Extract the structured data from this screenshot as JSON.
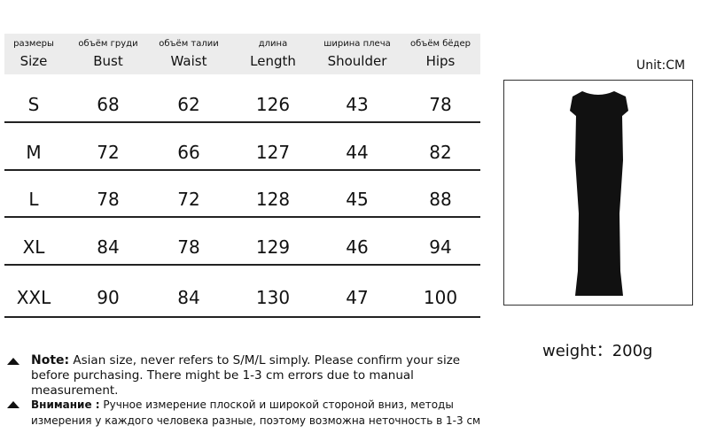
{
  "headers": [
    {
      "ru": "размеры",
      "en": "Size"
    },
    {
      "ru": "объём груди",
      "en": "Bust"
    },
    {
      "ru": "объём талии",
      "en": "Waist"
    },
    {
      "ru": "длина",
      "en": "Length"
    },
    {
      "ru": "ширина плеча",
      "en": "Shoulder"
    },
    {
      "ru": "объём бёдер",
      "en": "Hips"
    }
  ],
  "rows": [
    [
      "S",
      "68",
      "62",
      "126",
      "43",
      "78"
    ],
    [
      "M",
      "72",
      "66",
      "127",
      "44",
      "82"
    ],
    [
      "L",
      "78",
      "72",
      "128",
      "45",
      "88"
    ],
    [
      "XL",
      "84",
      "78",
      "129",
      "46",
      "94"
    ],
    [
      "XXL",
      "90",
      "84",
      "130",
      "47",
      "100"
    ]
  ],
  "unit": "Unit:CM",
  "weight": "weight：200g",
  "note": {
    "label": "Note:",
    "text": " Asian size, never refers to S/M/L simply. Please confirm your size before purchasing. There might be 1-3 cm errors due to manual measurement."
  },
  "note_ru": {
    "label": "Внимание :",
    "text": " Ручное измерение плоской и широкой стороной вниз, методы измерения у каждого человека разные, поэтому возможна неточность в 1-3 см"
  }
}
